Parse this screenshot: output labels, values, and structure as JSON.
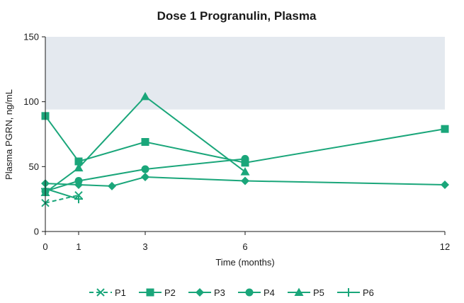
{
  "chart_data": {
    "type": "line",
    "title": "Dose 1 Progranulin, Plasma",
    "xlabel": "Time (months)",
    "ylabel": "Plasma PGRN, ng/mL",
    "xlim": [
      0,
      12
    ],
    "ylim": [
      0,
      150
    ],
    "xticks": [
      0,
      1,
      3,
      6,
      12
    ],
    "yticks": [
      0,
      50,
      100,
      150
    ],
    "reference_band": {
      "y_from": 94,
      "y_to": 150,
      "color": "#e4e9ef"
    },
    "line_color": "#1aa67a",
    "legend_position": "bottom",
    "grid": false,
    "series": [
      {
        "name": "P1",
        "marker": "x",
        "dashed": true,
        "points": [
          {
            "x": 0,
            "y": 22
          },
          {
            "x": 1,
            "y": 28
          }
        ]
      },
      {
        "name": "P2",
        "marker": "square",
        "dashed": false,
        "points": [
          {
            "x": 0,
            "y": 89
          },
          {
            "x": 1,
            "y": 54
          },
          {
            "x": 3,
            "y": 69
          },
          {
            "x": 6,
            "y": 53
          },
          {
            "x": 12,
            "y": 79
          }
        ]
      },
      {
        "name": "P3",
        "marker": "diamond",
        "dashed": false,
        "points": [
          {
            "x": 0,
            "y": 37
          },
          {
            "x": 1,
            "y": 36
          },
          {
            "x": 2,
            "y": 35
          },
          {
            "x": 3,
            "y": 42
          },
          {
            "x": 6,
            "y": 39
          },
          {
            "x": 12,
            "y": 36
          }
        ]
      },
      {
        "name": "P4",
        "marker": "circle",
        "dashed": false,
        "points": [
          {
            "x": 0,
            "y": 31
          },
          {
            "x": 1,
            "y": 39
          },
          {
            "x": 3,
            "y": 48
          },
          {
            "x": 6,
            "y": 56
          }
        ]
      },
      {
        "name": "P5",
        "marker": "triangle",
        "dashed": false,
        "points": [
          {
            "x": 0,
            "y": 30
          },
          {
            "x": 1,
            "y": 49
          },
          {
            "x": 3,
            "y": 104
          },
          {
            "x": 6,
            "y": 46
          }
        ]
      },
      {
        "name": "P6",
        "marker": "plus",
        "dashed": false,
        "points": [
          {
            "x": 0,
            "y": 33
          },
          {
            "x": 1,
            "y": 25
          }
        ]
      }
    ]
  }
}
